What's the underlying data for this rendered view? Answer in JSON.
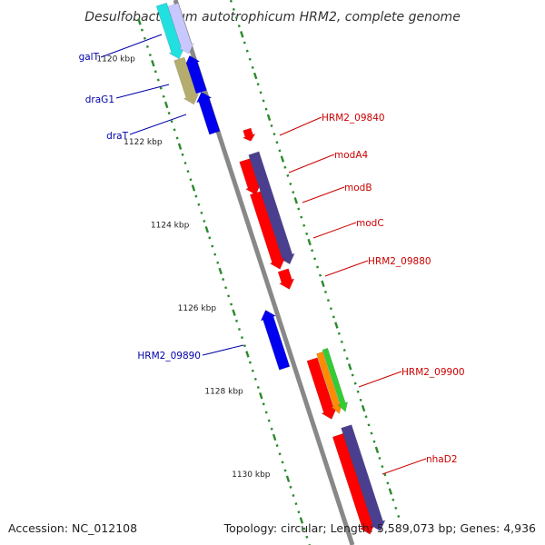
{
  "title": "Desulfobacterium autotrophicum HRM2, complete genome",
  "footer": {
    "accession": "Accession: NC_012108",
    "summary": "Topology: circular; Length: 5,589,073 bp; Genes: 4,936"
  },
  "colors": {
    "backbone": "#888888",
    "tick": "#2a8a2a",
    "label_forward": "#cc0000",
    "label_reverse": "#0000aa",
    "gene_blue": "#0000ee",
    "gene_red": "#ff0000",
    "gene_slate": "#4a3f8f",
    "gene_cyan": "#22e0e0",
    "gene_lavender": "#c8c8ff",
    "gene_khaki": "#b5ad6f",
    "gene_orange": "#ff8c00",
    "gene_green": "#33cc33"
  },
  "tick_labels": [
    {
      "kbp": 1120,
      "text": "1120 kbp"
    },
    {
      "kbp": 1122,
      "text": "1122 kbp"
    },
    {
      "kbp": 1124,
      "text": "1124 kbp"
    },
    {
      "kbp": 1126,
      "text": "1126 kbp"
    },
    {
      "kbp": 1128,
      "text": "1128 kbp"
    },
    {
      "kbp": 1130,
      "text": "1130 kbp"
    }
  ],
  "gene_labels": [
    {
      "text": "galT",
      "strand": "reverse"
    },
    {
      "text": "draG1",
      "strand": "reverse"
    },
    {
      "text": "draT",
      "strand": "reverse"
    },
    {
      "text": "HRM2_09840",
      "strand": "forward"
    },
    {
      "text": "modA4",
      "strand": "forward"
    },
    {
      "text": "modB",
      "strand": "forward"
    },
    {
      "text": "modC",
      "strand": "forward"
    },
    {
      "text": "HRM2_09880",
      "strand": "forward"
    },
    {
      "text": "HRM2_09890",
      "strand": "reverse"
    },
    {
      "text": "HRM2_09900",
      "strand": "forward"
    },
    {
      "text": "nhaD2",
      "strand": "forward"
    }
  ]
}
